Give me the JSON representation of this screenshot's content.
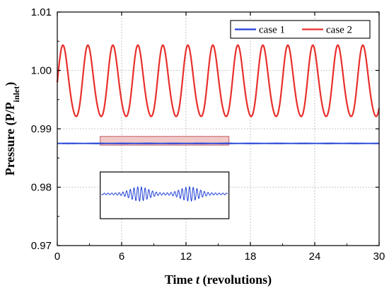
{
  "chart_data": {
    "type": "line",
    "title": "",
    "xlabel_prefix": "Time ",
    "xlabel_italic": "t",
    "xlabel_suffix": " (revolutions)",
    "ylabel_main": "Pressure (P/P",
    "ylabel_sub": "inlet",
    "ylabel_end": ")",
    "xlim": [
      0,
      30
    ],
    "ylim": [
      0.97,
      1.01
    ],
    "xticks": [
      0,
      6,
      12,
      18,
      24,
      30
    ],
    "xtick_labels": [
      "0",
      "6",
      "12",
      "18",
      "24",
      "30"
    ],
    "yticks": [
      0.97,
      0.98,
      0.99,
      1.0,
      1.01
    ],
    "ytick_labels": [
      "0.97",
      "0.98",
      "0.99",
      "1.00",
      "1.01"
    ],
    "grid": true,
    "legend_placement": "top-right",
    "series": [
      {
        "name": "case 1",
        "color": "#1f3fd6",
        "mean": 0.9875,
        "amplitude": 5e-05,
        "x": [
          0,
          30
        ],
        "y": [
          0.9875,
          0.9875
        ]
      },
      {
        "name": "case 2",
        "color": "#e8302c",
        "period": 2.33,
        "mean": 0.9978,
        "peak": 1.0044,
        "trough": 0.9912,
        "first_peak_x": 0.55,
        "peaks_x": [
          0.55,
          2.88,
          5.21,
          7.54,
          9.87,
          12.2,
          14.53,
          16.86,
          19.19,
          21.52,
          23.85,
          26.18,
          28.51
        ],
        "troughs_x": [
          1.71,
          4.04,
          6.37,
          8.7,
          11.03,
          13.36,
          15.69,
          18.02,
          20.35,
          22.68,
          25.01,
          27.34
        ]
      }
    ],
    "highlight_box": {
      "x_range": [
        4,
        16
      ],
      "y_range": [
        0.9872,
        0.9887
      ],
      "fill": "#f2c9c9"
    },
    "inset": {
      "x_range": [
        4,
        16
      ],
      "note": "zoomed view of case 1 oscillations"
    }
  }
}
